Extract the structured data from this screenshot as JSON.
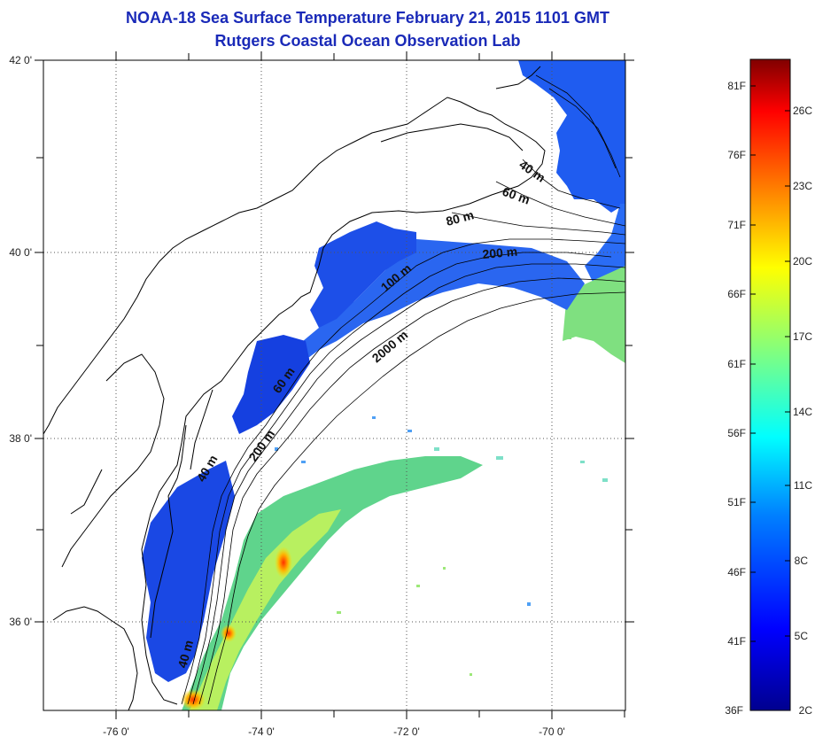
{
  "header": {
    "title_line1": "NOAA-18 Sea Surface Temperature February 21, 2015 1101 GMT",
    "title_line2": "Rutgers Coastal Ocean Observation Lab"
  },
  "map": {
    "longitude_ticks": [
      "-76 0'",
      "-74 0'",
      "-72 0'",
      "-70 0'"
    ],
    "latitude_ticks": [
      "42 0'",
      "40 0'",
      "38 0'",
      "36 0'"
    ],
    "longitude_range": [
      -77,
      -69
    ],
    "latitude_range": [
      35,
      42
    ],
    "grid": "dotted",
    "contour_labels": [
      "40 m",
      "60 m",
      "80 m",
      "100 m",
      "200 m",
      "2000 m",
      "60 m",
      "200 m",
      "40 m",
      "40 m"
    ]
  },
  "colorbar": {
    "fahrenheit_labels": [
      "81F",
      "76F",
      "71F",
      "66F",
      "61F",
      "56F",
      "51F",
      "46F",
      "41F",
      "36F"
    ],
    "celsius_labels": [
      "26C",
      "23C",
      "20C",
      "17C",
      "14C",
      "11C",
      "8C",
      "5C",
      "2C"
    ],
    "colormap": "jet",
    "colors": [
      "#00008f",
      "#0000ff",
      "#0080ff",
      "#00ffff",
      "#80ff80",
      "#ffff00",
      "#ff8000",
      "#ff0000",
      "#800000"
    ]
  }
}
